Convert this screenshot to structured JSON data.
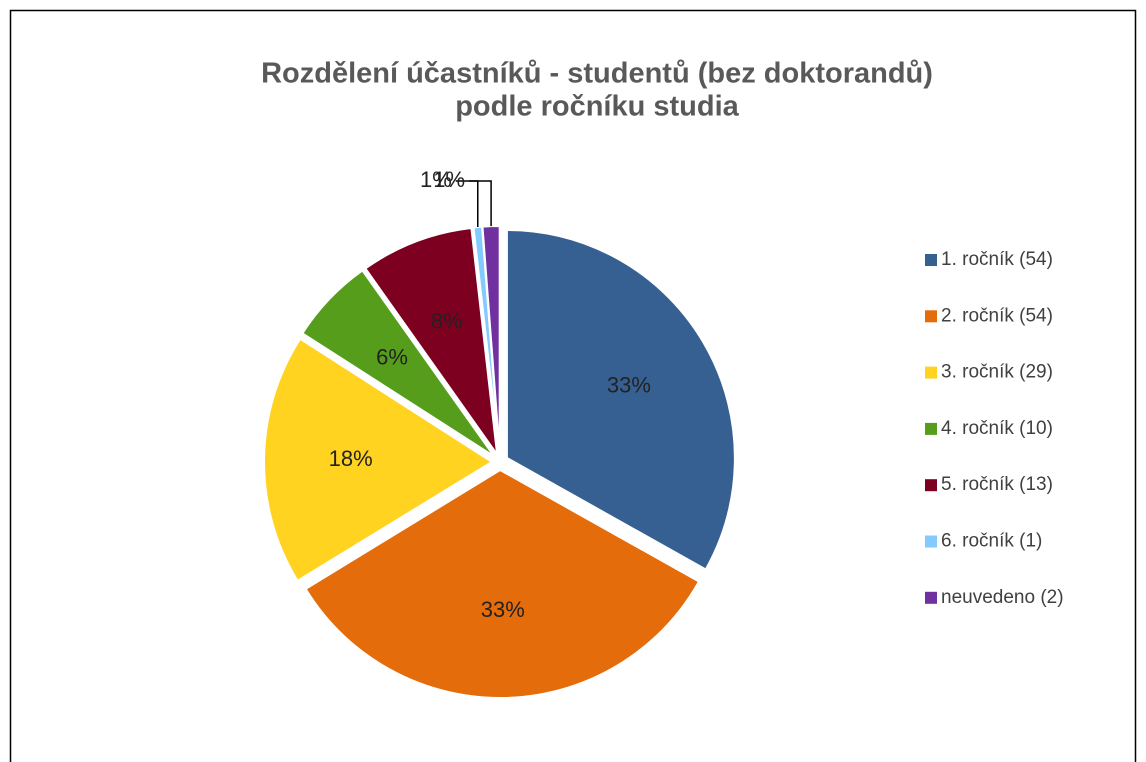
{
  "chart_data": {
    "type": "pie",
    "title": [
      "Rozdělení účastníků - studentů (bez doktorandů)",
      "podle ročníku studia"
    ],
    "categories": [
      "1. ročník (54)",
      "2. ročník (54)",
      "3. ročník (29)",
      "4. ročník (10)",
      "5. ročník (13)",
      "6. ročník (1)",
      "neuvedeno (2)"
    ],
    "values": [
      33.1,
      33.1,
      17.8,
      6.1,
      8.0,
      0.6,
      1.2
    ],
    "value_labels": [
      "33%",
      "33%",
      "18%",
      "6%",
      "8%",
      "1%",
      "1%"
    ],
    "colors": [
      "#376092",
      "#e46c0a",
      "#ffd320",
      "#579d1c",
      "#7e0021",
      "#83caff",
      "#7030a0"
    ],
    "legend": "right"
  }
}
